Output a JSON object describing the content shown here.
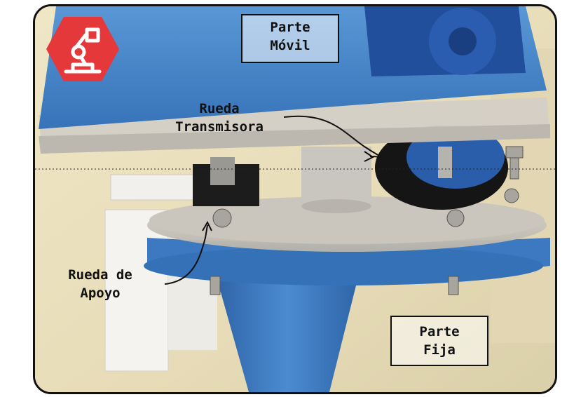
{
  "labels": {
    "parte_movil_1": "Parte",
    "parte_movil_2": "Móvil",
    "rueda_transmisora_1": "Rueda",
    "rueda_transmisora_2": "Transmisora",
    "rueda_apoyo_1": "Rueda de",
    "rueda_apoyo_2": "Apoyo",
    "parte_fija_1": "Parte",
    "parte_fija_2": "Fija"
  },
  "colors": {
    "blue_plastic": "#3f7fc4",
    "logo_red": "#e5383b",
    "wall": "#e9e0c4"
  },
  "icons": {
    "logo": "robot-arm-icon"
  }
}
